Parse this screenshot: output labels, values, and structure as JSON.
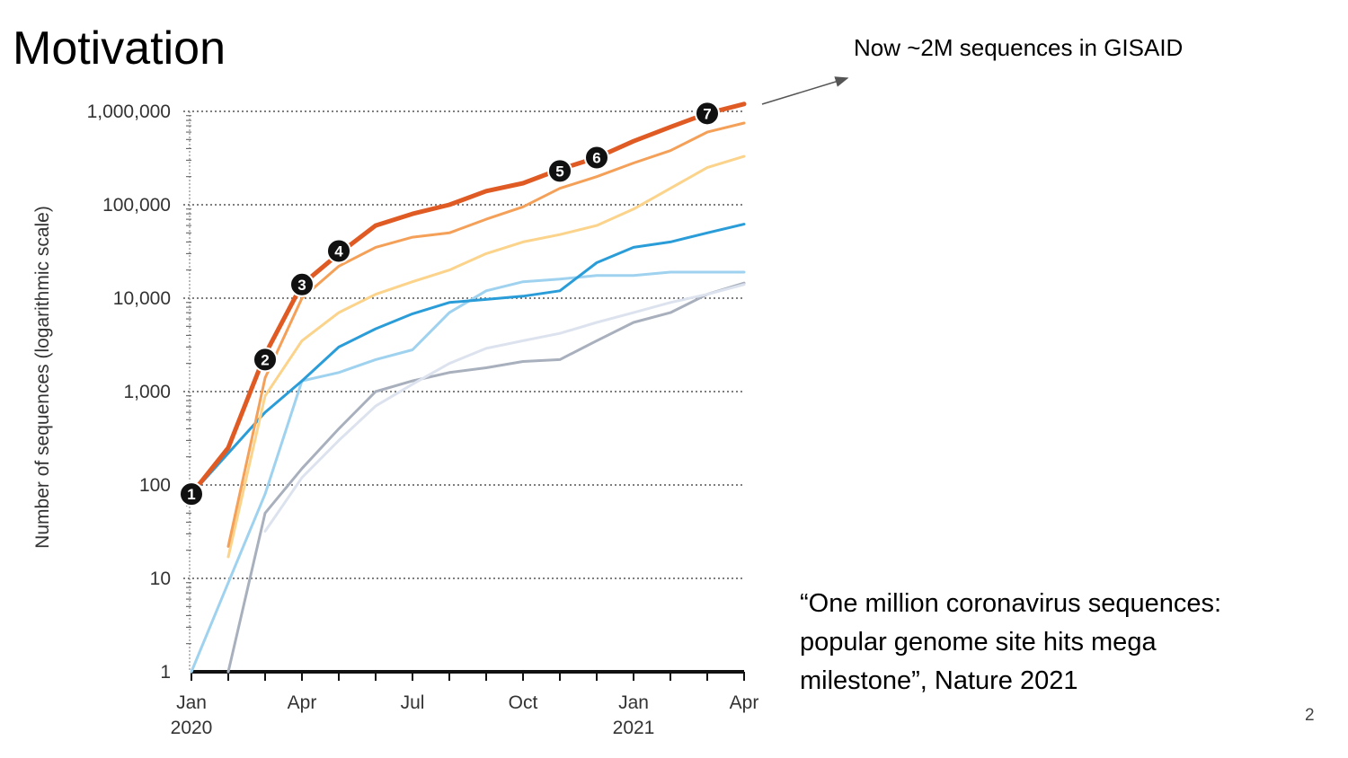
{
  "slide": {
    "title": "Motivation",
    "annotation": "Now ~2M sequences in GISAID",
    "quote": "“One million coronavirus sequences: popular genome site hits mega milestone”, Nature 2021",
    "page_number": "2"
  },
  "chart_data": {
    "type": "line",
    "ylabel": "Number of sequences (logarithmic scale)",
    "yscale": "log",
    "ylim": [
      1,
      1000000
    ],
    "y_ticks": [
      1,
      10,
      100,
      1000,
      10000,
      100000,
      1000000
    ],
    "y_tick_labels": [
      "1",
      "10",
      "100",
      "1,000",
      "10,000",
      "100,000",
      "1,000,000"
    ],
    "x_ticks": [
      "2020-01",
      "2020-04",
      "2020-07",
      "2020-10",
      "2021-01",
      "2021-04"
    ],
    "x_tick_labels": [
      "Jan\n2020",
      "Apr",
      "Jul",
      "Oct",
      "Jan\n2021",
      "Apr"
    ],
    "grid": "horizontal dotted",
    "series": [
      {
        "color": "#e05a24",
        "width": 5,
        "points": [
          [
            "2020-01",
            80
          ],
          [
            "2020-02",
            250
          ],
          [
            "2020-03",
            2500
          ],
          [
            "2020-04",
            14000
          ],
          [
            "2020-05",
            30000
          ],
          [
            "2020-06",
            60000
          ],
          [
            "2020-07",
            80000
          ],
          [
            "2020-08",
            100000
          ],
          [
            "2020-09",
            140000
          ],
          [
            "2020-10",
            170000
          ],
          [
            "2020-11",
            240000
          ],
          [
            "2020-12",
            320000
          ],
          [
            "2021-01",
            480000
          ],
          [
            "2021-02",
            680000
          ],
          [
            "2021-03",
            950000
          ],
          [
            "2021-04",
            1200000
          ]
        ]
      },
      {
        "color": "#f5a058",
        "width": 3,
        "points": [
          [
            "2020-02",
            22
          ],
          [
            "2020-03",
            1400
          ],
          [
            "2020-04",
            10000
          ],
          [
            "2020-05",
            22000
          ],
          [
            "2020-06",
            35000
          ],
          [
            "2020-07",
            45000
          ],
          [
            "2020-08",
            50000
          ],
          [
            "2020-09",
            70000
          ],
          [
            "2020-10",
            95000
          ],
          [
            "2020-11",
            150000
          ],
          [
            "2020-12",
            200000
          ],
          [
            "2021-01",
            280000
          ],
          [
            "2021-02",
            380000
          ],
          [
            "2021-03",
            600000
          ],
          [
            "2021-04",
            750000
          ]
        ]
      },
      {
        "color": "#fbd38a",
        "width": 3,
        "points": [
          [
            "2020-02",
            17
          ],
          [
            "2020-03",
            900
          ],
          [
            "2020-04",
            3500
          ],
          [
            "2020-05",
            7000
          ],
          [
            "2020-06",
            11000
          ],
          [
            "2020-07",
            15000
          ],
          [
            "2020-08",
            20000
          ],
          [
            "2020-09",
            30000
          ],
          [
            "2020-10",
            40000
          ],
          [
            "2020-11",
            48000
          ],
          [
            "2020-12",
            60000
          ],
          [
            "2021-01",
            90000
          ],
          [
            "2021-02",
            150000
          ],
          [
            "2021-03",
            250000
          ],
          [
            "2021-04",
            330000
          ]
        ]
      },
      {
        "color": "#2a9dd8",
        "width": 3,
        "points": [
          [
            "2020-01",
            80
          ],
          [
            "2020-03",
            600
          ],
          [
            "2020-04",
            1300
          ],
          [
            "2020-05",
            3000
          ],
          [
            "2020-06",
            4700
          ],
          [
            "2020-07",
            6800
          ],
          [
            "2020-08",
            9000
          ],
          [
            "2020-09",
            9700
          ],
          [
            "2020-10",
            10500
          ],
          [
            "2020-11",
            12000
          ],
          [
            "2020-12",
            24000
          ],
          [
            "2021-01",
            35000
          ],
          [
            "2021-02",
            40000
          ],
          [
            "2021-03",
            50000
          ],
          [
            "2021-04",
            62000
          ]
        ]
      },
      {
        "color": "#9fd2ef",
        "width": 3,
        "points": [
          [
            "2020-01",
            1
          ],
          [
            "2020-02",
            9
          ],
          [
            "2020-03",
            80
          ],
          [
            "2020-04",
            1300
          ],
          [
            "2020-05",
            1600
          ],
          [
            "2020-06",
            2200
          ],
          [
            "2020-07",
            2800
          ],
          [
            "2020-08",
            7000
          ],
          [
            "2020-09",
            12000
          ],
          [
            "2020-10",
            15000
          ],
          [
            "2020-11",
            16000
          ],
          [
            "2020-12",
            17500
          ],
          [
            "2021-01",
            17500
          ],
          [
            "2021-02",
            19000
          ],
          [
            "2021-03",
            19000
          ],
          [
            "2021-04",
            19000
          ]
        ]
      },
      {
        "color": "#dde3ee",
        "width": 3,
        "points": [
          [
            "2020-03",
            32
          ],
          [
            "2020-04",
            120
          ],
          [
            "2020-05",
            300
          ],
          [
            "2020-06",
            700
          ],
          [
            "2020-07",
            1200
          ],
          [
            "2020-08",
            2000
          ],
          [
            "2020-09",
            2900
          ],
          [
            "2020-10",
            3500
          ],
          [
            "2020-11",
            4200
          ],
          [
            "2020-12",
            5500
          ],
          [
            "2021-01",
            7000
          ],
          [
            "2021-02",
            9000
          ],
          [
            "2021-03",
            11000
          ],
          [
            "2021-04",
            14000
          ]
        ]
      },
      {
        "color": "#a9b0bd",
        "width": 3,
        "points": [
          [
            "2020-02",
            1
          ],
          [
            "2020-03",
            50
          ],
          [
            "2020-04",
            150
          ],
          [
            "2020-05",
            400
          ],
          [
            "2020-06",
            1000
          ],
          [
            "2020-07",
            1300
          ],
          [
            "2020-08",
            1600
          ],
          [
            "2020-09",
            1800
          ],
          [
            "2020-10",
            2100
          ],
          [
            "2020-11",
            2200
          ],
          [
            "2020-12",
            3500
          ],
          [
            "2021-01",
            5500
          ],
          [
            "2021-02",
            7000
          ],
          [
            "2021-03",
            11000
          ],
          [
            "2021-04",
            14500
          ]
        ]
      }
    ],
    "markers": [
      {
        "label": "1",
        "date": "2020-01",
        "value": 80
      },
      {
        "label": "2",
        "date": "2020-03",
        "value": 2200
      },
      {
        "label": "3",
        "date": "2020-04",
        "value": 14000
      },
      {
        "label": "4",
        "date": "2020-05",
        "value": 32000
      },
      {
        "label": "5",
        "date": "2020-11",
        "value": 230000
      },
      {
        "label": "6",
        "date": "2020-12",
        "value": 320000
      },
      {
        "label": "7",
        "date": "2021-03",
        "value": 950000
      }
    ],
    "pointer_arrow": "from chart top-right toward annotation"
  }
}
